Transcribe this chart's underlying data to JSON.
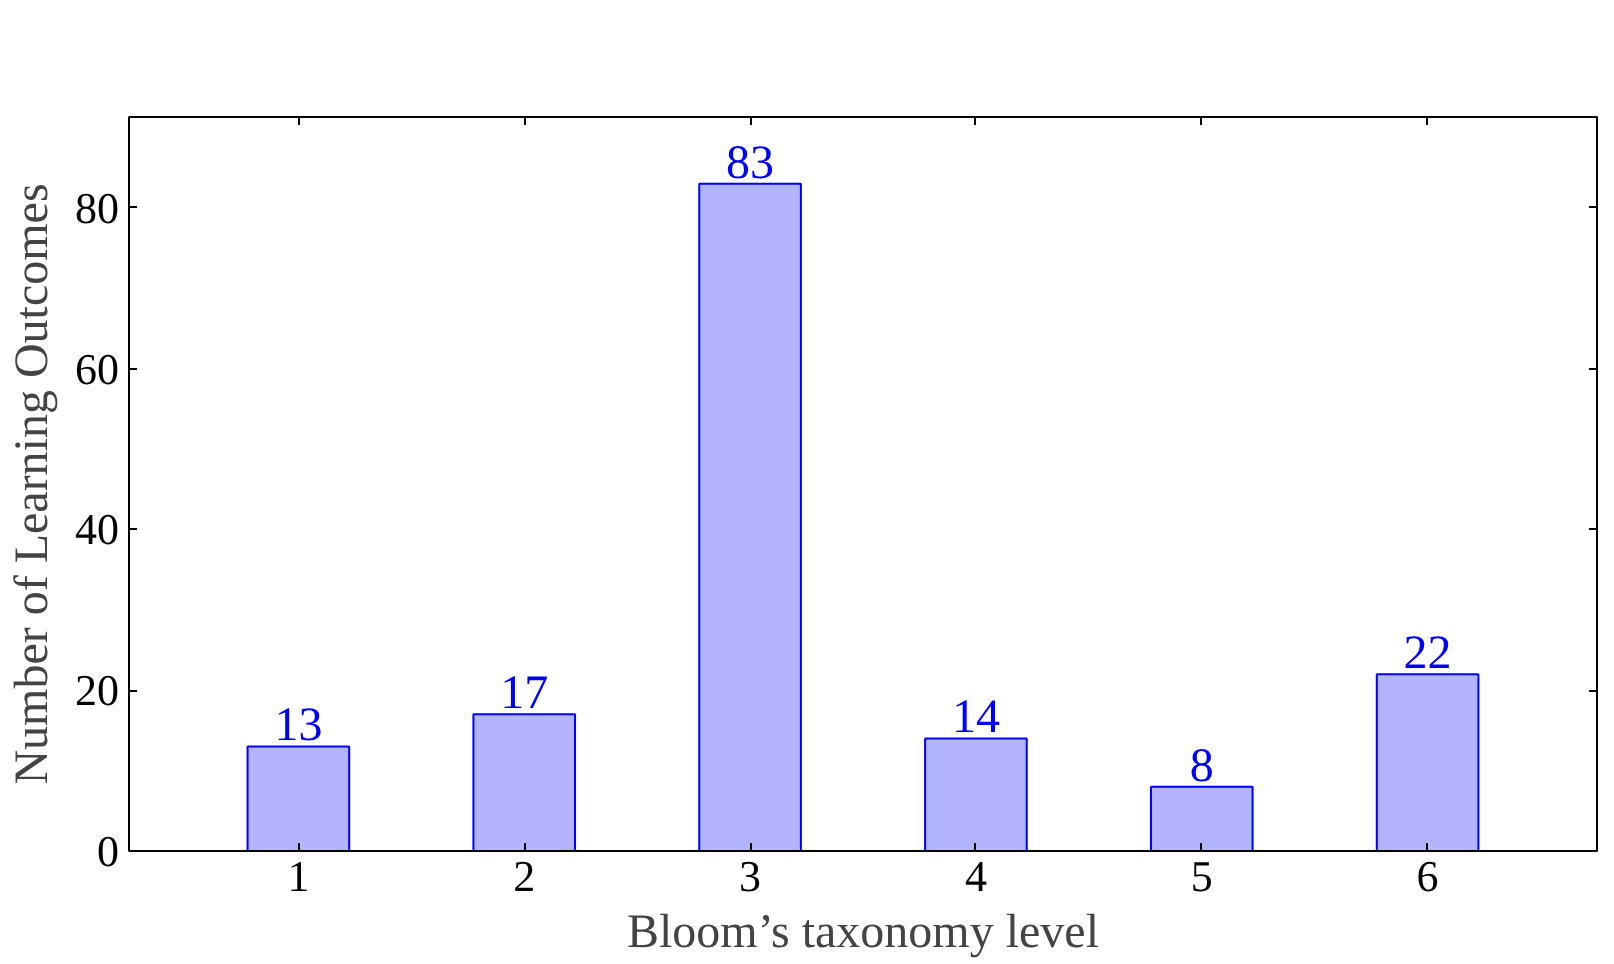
{
  "chart_data": {
    "type": "bar",
    "xlabel": "Bloom’s taxonomy level",
    "ylabel": "Number of Learning Outcomes",
    "x": [
      1,
      2,
      3,
      4,
      5,
      6
    ],
    "values": [
      13,
      17,
      83,
      14,
      8,
      22
    ],
    "color": "#b3b3ff",
    "data_labels": true,
    "xlim": [
      0.25,
      6.75
    ],
    "ylim": [
      0,
      91.3
    ],
    "xticks": [
      1,
      2,
      3,
      4,
      5,
      6
    ],
    "yticks": [
      0,
      20,
      40,
      60,
      80
    ],
    "grid": false
  }
}
